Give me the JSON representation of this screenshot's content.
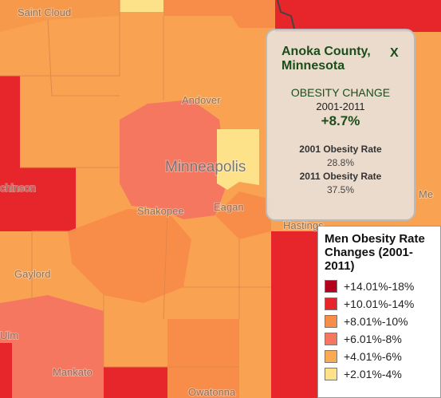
{
  "map": {
    "places": [
      "Saint Cloud",
      "Andover",
      "Minneapolis",
      "chinson",
      "Shakopee",
      "Eagan",
      "Hastings",
      "Gaylord",
      "Ulm",
      "Mankato",
      "Owatonna",
      "Me"
    ]
  },
  "popup": {
    "title": "Anoka County, Minnesota",
    "close": "X",
    "metric": "OBESITY CHANGE",
    "period": "2001-2011",
    "change": "+8.7%",
    "rate_2001_label": "2001 Obesity Rate",
    "rate_2001": "28.8%",
    "rate_2011_label": "2011 Obesity Rate",
    "rate_2011": "37.5%"
  },
  "legend": {
    "title": "Men Obesity Rate Changes (2001-2011)",
    "items": [
      {
        "label": "+14.01%-18%",
        "color": "#b3001f"
      },
      {
        "label": "+10.01%-14%",
        "color": "#e6262a"
      },
      {
        "label": "+8.01%-10%",
        "color": "#f88d4a"
      },
      {
        "label": "+6.01%-8%",
        "color": "#f57760"
      },
      {
        "label": "+4.01%-6%",
        "color": "#faaa53"
      },
      {
        "label": "+2.01%-4%",
        "color": "#fde28a"
      }
    ]
  }
}
